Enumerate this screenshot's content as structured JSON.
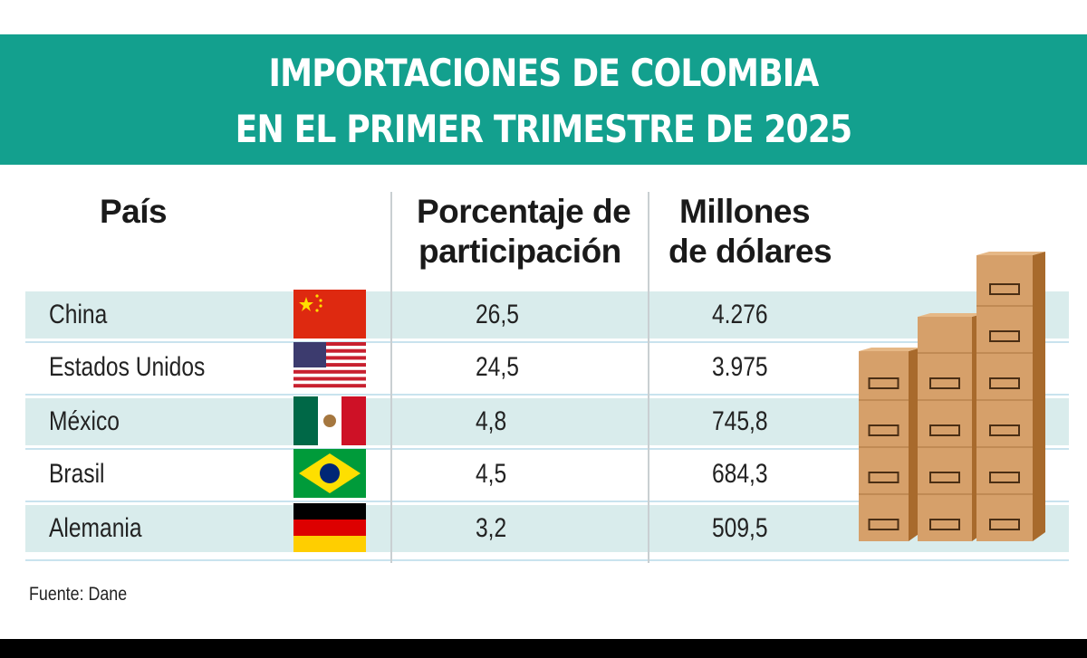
{
  "title": {
    "line1": "IMPORTACIONES DE COLOMBIA",
    "line2": "EN EL PRIMER TRIMESTRE DE 2025"
  },
  "chart_data": {
    "type": "table",
    "columns": [
      "País",
      "Porcentaje de participación",
      "Millones de dólares"
    ],
    "column_headers": {
      "pais": "País",
      "pct_line1": "Porcentaje de",
      "pct_line2": "participación",
      "usd_line1": "Millones",
      "usd_line2": "de dólares"
    },
    "rows": [
      {
        "country": "China",
        "flag": "china-flag",
        "share": "26,5",
        "usd_millions": "4.276"
      },
      {
        "country": "Estados Unidos",
        "flag": "usa-flag",
        "share": "24,5",
        "usd_millions": "3.975"
      },
      {
        "country": "México",
        "flag": "mexico-flag",
        "share": "4,8",
        "usd_millions": "745,8"
      },
      {
        "country": "Brasil",
        "flag": "brazil-flag",
        "share": "4,5",
        "usd_millions": "684,3"
      },
      {
        "country": "Alemania",
        "flag": "germany-flag",
        "share": "3,2",
        "usd_millions": "509,5"
      }
    ]
  },
  "source": "Fuente: Dane",
  "colors": {
    "banner": "#13a08e",
    "row_shade": "#d9ecec",
    "box": "#d29a62"
  },
  "decoration": "stacked-cardboard-boxes"
}
